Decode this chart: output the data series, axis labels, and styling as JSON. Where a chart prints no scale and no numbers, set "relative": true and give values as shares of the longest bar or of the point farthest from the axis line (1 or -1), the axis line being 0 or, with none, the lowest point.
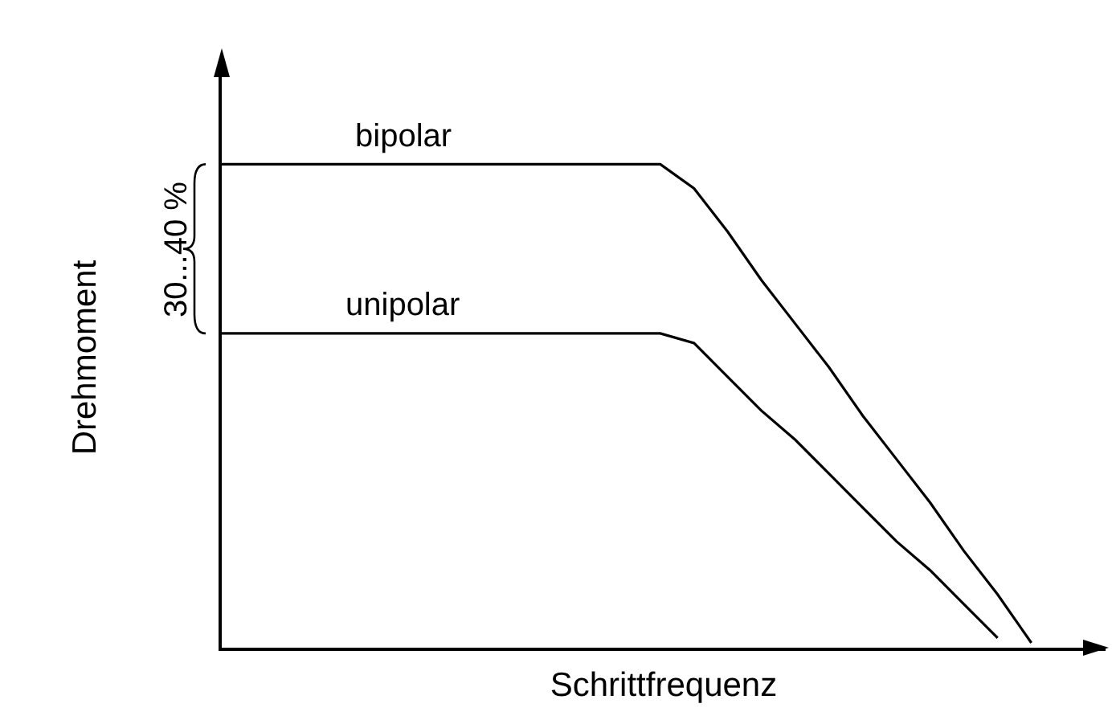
{
  "chart_data": {
    "type": "line",
    "relative": true,
    "xlabel": "Schrittfrequenz",
    "ylabel": "Drehmoment",
    "annotations": [
      "30...40 %"
    ],
    "legend": false,
    "grid": false,
    "marker": "none",
    "line_style": "solid",
    "categories": [
      null,
      null,
      null,
      null,
      null,
      null,
      null,
      null,
      null,
      null,
      null,
      null,
      null,
      null,
      null,
      null,
      null,
      null,
      null,
      null,
      null,
      null,
      null,
      null,
      null,
      null,
      null
    ],
    "series": [
      {
        "name": "bipolar",
        "color": "#000000",
        "values": [
          1,
          1,
          1,
          1,
          1,
          1,
          1,
          1,
          1,
          1,
          1,
          1,
          1,
          1,
          0.95,
          0.86,
          0.76,
          0.67,
          0.58,
          0.48,
          0.39,
          0.3,
          0.2,
          0.11,
          0.01,
          null,
          null
        ]
      },
      {
        "name": "unipolar",
        "color": "#000000",
        "values": [
          0.65,
          0.65,
          0.65,
          0.65,
          0.65,
          0.65,
          0.65,
          0.65,
          0.65,
          0.65,
          0.65,
          0.65,
          0.65,
          0.65,
          0.63,
          0.56,
          0.49,
          0.43,
          0.36,
          0.29,
          0.22,
          0.16,
          0.09,
          0.02,
          null,
          null,
          null
        ]
      }
    ]
  }
}
